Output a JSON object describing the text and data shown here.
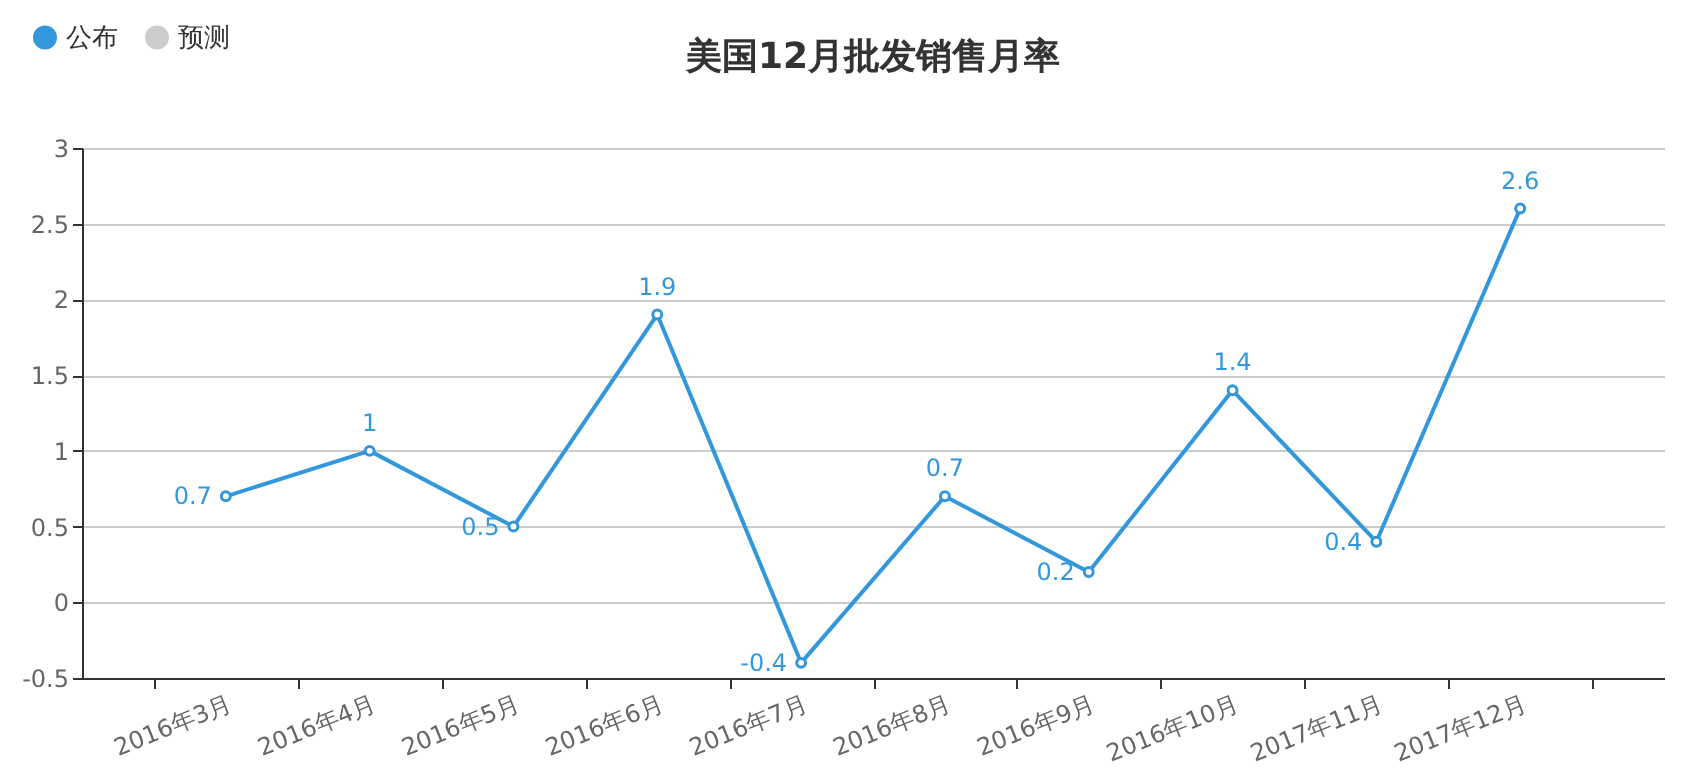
{
  "chart_data": {
    "type": "line",
    "title": "美国12月批发销售月率",
    "categories": [
      "2016年3月",
      "2016年4月",
      "2016年5月",
      "2016年6月",
      "2016年7月",
      "2016年8月",
      "2016年9月",
      "2016年10月",
      "2017年11月",
      "2017年12月"
    ],
    "series": [
      {
        "name": "公布",
        "color": "#3398db",
        "values": [
          0.7,
          1,
          0.5,
          1.9,
          -0.4,
          0.7,
          0.2,
          1.4,
          0.4,
          2.6
        ]
      },
      {
        "name": "预测",
        "color": "#cccccc",
        "values": [
          null,
          null,
          null,
          null,
          null,
          null,
          null,
          null,
          null,
          null
        ]
      }
    ],
    "ylim": [
      -0.5,
      3
    ],
    "yticks": [
      -0.5,
      0,
      0.5,
      1,
      1.5,
      2,
      2.5,
      3
    ],
    "grid": "y",
    "legend": "top left",
    "marker": "circle",
    "data_labels": true
  }
}
